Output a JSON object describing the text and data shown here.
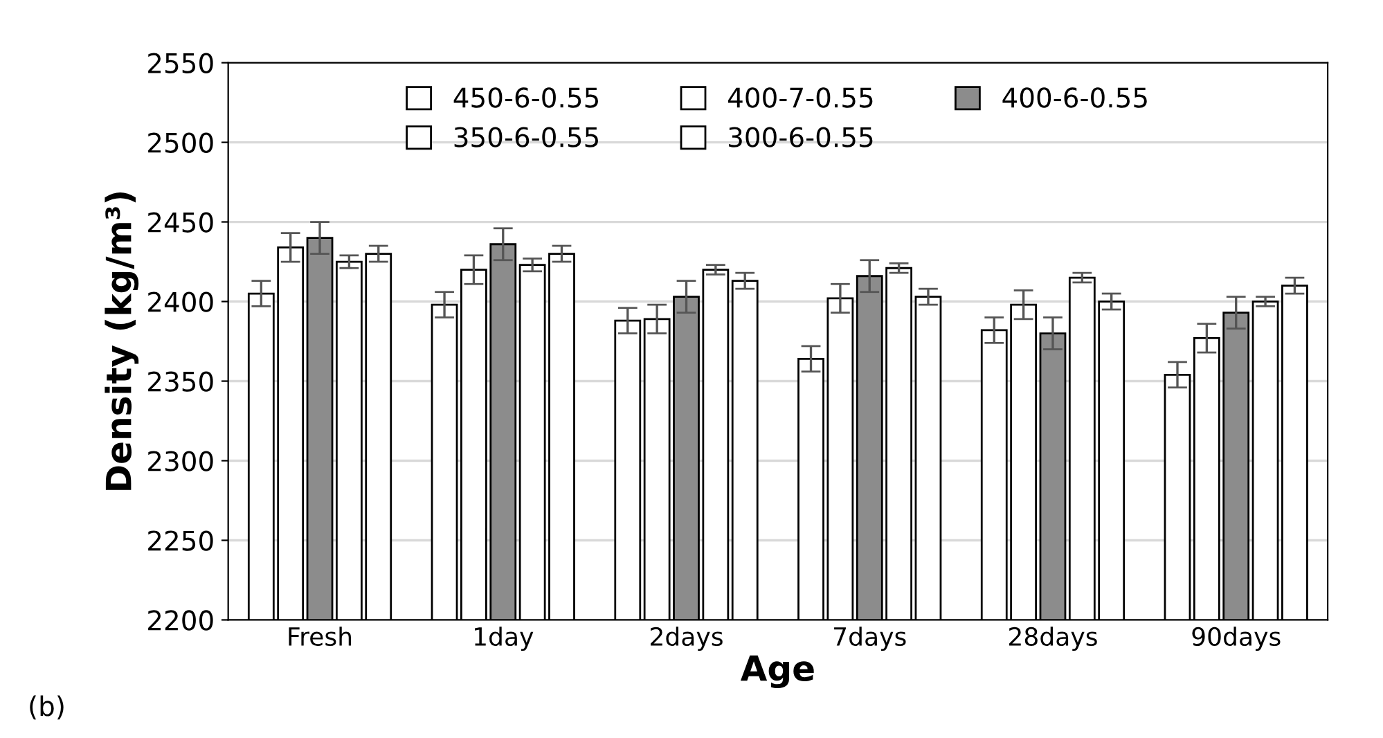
{
  "chart_data": {
    "type": "bar",
    "xlabel": "Age",
    "ylabel": "Density (kg/m³)",
    "categories": [
      "Fresh",
      "1day",
      "2days",
      "7days",
      "28days",
      "90days"
    ],
    "series": [
      {
        "name": "450-6-0.55",
        "color": "#ffffff",
        "values": [
          2405,
          2398,
          2388,
          2364,
          2382,
          2354
        ],
        "errors": [
          8,
          8,
          8,
          8,
          8,
          8
        ]
      },
      {
        "name": "400-7-0.55",
        "color": "#ffffff",
        "values": [
          2434,
          2420,
          2389,
          2402,
          2398,
          2377
        ],
        "errors": [
          9,
          9,
          9,
          9,
          9,
          9
        ]
      },
      {
        "name": "400-6-0.55",
        "color": "#8c8c8c",
        "values": [
          2440,
          2436,
          2403,
          2416,
          2380,
          2393
        ],
        "errors": [
          10,
          10,
          10,
          10,
          10,
          10
        ]
      },
      {
        "name": "350-6-0.55",
        "color": "#ffffff",
        "values": [
          2425,
          2423,
          2420,
          2421,
          2415,
          2400
        ],
        "errors": [
          4,
          4,
          3,
          3,
          3,
          3
        ]
      },
      {
        "name": "300-6-0.55",
        "color": "#ffffff",
        "values": [
          2430,
          2430,
          2413,
          2403,
          2400,
          2410
        ],
        "errors": [
          5,
          5,
          5,
          5,
          5,
          5
        ]
      }
    ],
    "ylim": [
      2200,
      2550
    ],
    "yticks": [
      2200,
      2250,
      2300,
      2350,
      2400,
      2450,
      2500,
      2550
    ],
    "grid": "y",
    "legend": "top",
    "annotations": [
      "(b)"
    ]
  }
}
